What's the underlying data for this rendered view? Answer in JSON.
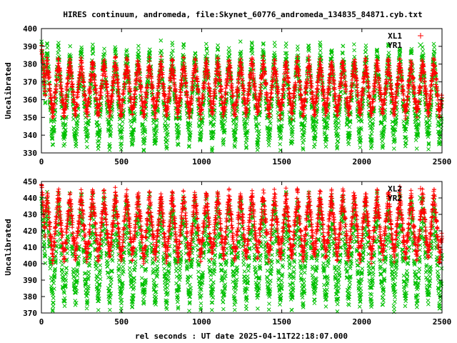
{
  "chart_data": [
    {
      "type": "scatter",
      "title": "HIRES continuum, andromeda, file:Skynet_60776_andromeda_134835_84871.cyb.txt",
      "xlabel": "",
      "ylabel": "Uncalibrated",
      "xlim": [
        0,
        2500
      ],
      "ylim": [
        330,
        400
      ],
      "xticks": [
        "0",
        "500",
        "1000",
        "1500",
        "2000",
        "2500"
      ],
      "yticks": [
        "330",
        "340",
        "350",
        "360",
        "370",
        "380",
        "390",
        "400"
      ],
      "grid": false,
      "legend_position": "top-right",
      "series": [
        {
          "name": "XL1",
          "marker": "+",
          "color": "#ff0000",
          "period_s": 71,
          "trough": 352,
          "peak": 382,
          "mean": 362,
          "start_value": 390
        },
        {
          "name": "YR1",
          "marker": "x",
          "color": "#00c000",
          "period_s": 71,
          "trough": 336,
          "peak": 388,
          "mean": 358,
          "start_value": 393
        }
      ]
    },
    {
      "type": "scatter",
      "title": "",
      "xlabel": "rel seconds : UT date 2025-04-11T22:18:07.000",
      "ylabel": "Uncalibrated",
      "xlim": [
        0,
        2500
      ],
      "ylim": [
        370,
        450
      ],
      "xticks": [
        "0",
        "500",
        "1000",
        "1500",
        "2000",
        "2500"
      ],
      "yticks": [
        "370",
        "380",
        "390",
        "400",
        "410",
        "420",
        "430",
        "440",
        "450"
      ],
      "grid": false,
      "legend_position": "top-right",
      "series": [
        {
          "name": "XL2",
          "marker": "+",
          "color": "#ff0000",
          "period_s": 71,
          "trough": 404,
          "peak": 443,
          "mean": 415,
          "start_value": 450
        },
        {
          "name": "YR2",
          "marker": "x",
          "color": "#00c000",
          "period_s": 71,
          "trough": 377,
          "peak": 438,
          "mean": 400,
          "start_value": 440
        }
      ]
    }
  ]
}
